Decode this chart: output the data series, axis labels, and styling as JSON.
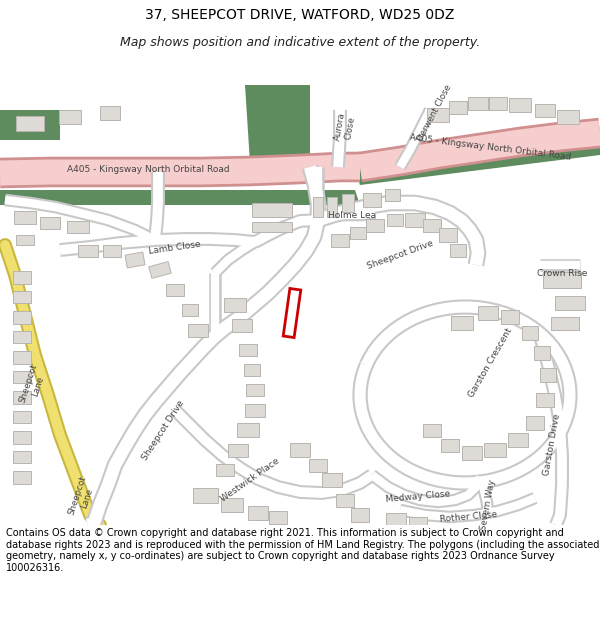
{
  "title_line1": "37, SHEEPCOT DRIVE, WATFORD, WD25 0DZ",
  "title_line2": "Map shows position and indicative extent of the property.",
  "footer": "Contains OS data © Crown copyright and database right 2021. This information is subject to Crown copyright and database rights 2023 and is reproduced with the permission of HM Land Registry. The polygons (including the associated geometry, namely x, y co-ordinates) are subject to Crown copyright and database rights 2023 Ordnance Survey 100026316.",
  "bg_color": "#f2f0ec",
  "road_color": "#ffffff",
  "road_outline_color": "#c8c8c8",
  "building_color": "#dedad5",
  "building_outline": "#b8b4af",
  "major_road_color": "#f7cece",
  "major_road_outline": "#d09090",
  "green_area_color": "#5f8c5f",
  "yellow_road_color": "#f0e070",
  "yellow_road_outline": "#c8b840",
  "plot_color": "#cc0000",
  "text_color": "#444444",
  "map_bg": "#f2f0ec",
  "title_fontsize": 10,
  "subtitle_fontsize": 9,
  "footer_fontsize": 7
}
